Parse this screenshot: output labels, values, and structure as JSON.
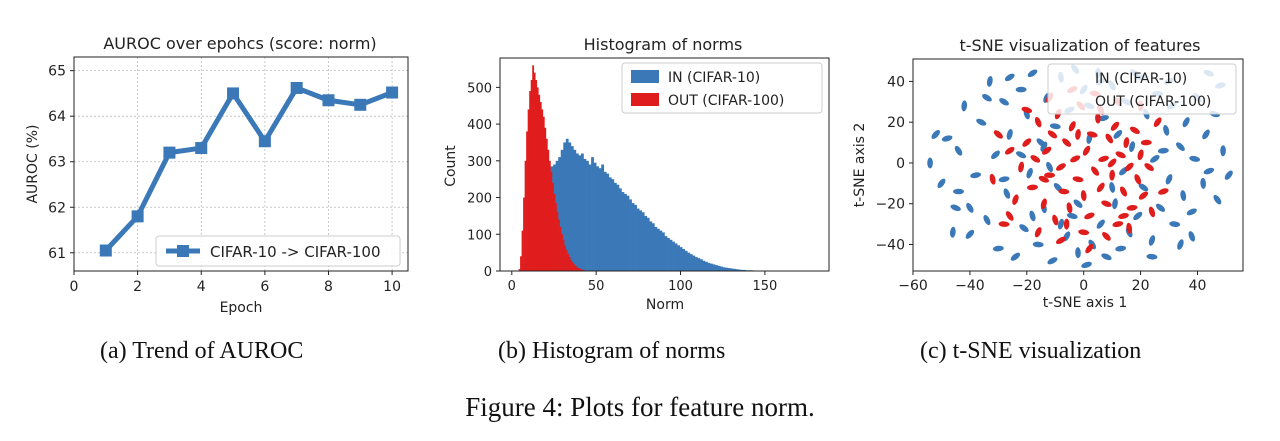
{
  "chart_data": [
    {
      "type": "line",
      "title": "AUROC over epohcs (score: norm)",
      "xlabel": "Epoch",
      "ylabel": "AUROC (%)",
      "xlim": [
        0,
        10.5
      ],
      "ylim": [
        60.6,
        65.3
      ],
      "xticks": [
        0,
        2,
        4,
        6,
        8,
        10
      ],
      "yticks": [
        61,
        62,
        63,
        64,
        65
      ],
      "grid": true,
      "legend_position": "lower-right",
      "series": [
        {
          "name": "CIFAR-10 -> CIFAR-100",
          "color": "#3a78b8",
          "x": [
            1,
            2,
            3,
            4,
            5,
            6,
            7,
            8,
            9,
            10
          ],
          "y": [
            61.05,
            61.8,
            63.2,
            63.3,
            64.5,
            63.45,
            64.62,
            64.35,
            64.25,
            64.52
          ]
        }
      ]
    },
    {
      "type": "histogram",
      "title": "Histogram of norms",
      "xlabel": "Norm",
      "ylabel": "Count",
      "xlim": [
        -7,
        188
      ],
      "ylim": [
        0,
        580
      ],
      "xticks": [
        0,
        50,
        100,
        150
      ],
      "yticks": [
        0,
        100,
        200,
        300,
        400,
        500
      ],
      "grid": false,
      "legend_position": "top-right",
      "series": [
        {
          "name": "IN (CIFAR-10)",
          "color": "#3a78b8",
          "bin_start": 5,
          "bin_width": 1.5,
          "counts": [
            5,
            20,
            55,
            95,
            140,
            180,
            215,
            240,
            260,
            270,
            275,
            280,
            285,
            290,
            300,
            310,
            330,
            350,
            360,
            350,
            340,
            330,
            320,
            315,
            320,
            305,
            300,
            290,
            310,
            295,
            285,
            280,
            290,
            270,
            265,
            255,
            250,
            240,
            235,
            225,
            215,
            210,
            205,
            195,
            185,
            180,
            170,
            165,
            160,
            150,
            145,
            135,
            130,
            120,
            115,
            110,
            105,
            95,
            90,
            85,
            80,
            75,
            70,
            65,
            60,
            55,
            50,
            46,
            42,
            38,
            35,
            32,
            28,
            25,
            22,
            20,
            18,
            16,
            14,
            12,
            10,
            9,
            8,
            7,
            6,
            5,
            4,
            3,
            3,
            2,
            2,
            2,
            1,
            1,
            1,
            1,
            1
          ]
        },
        {
          "name": "OUT (CIFAR-100)",
          "color": "#e01d1d",
          "bin_start": 4,
          "bin_width": 0.9,
          "counts": [
            5,
            40,
            110,
            200,
            300,
            380,
            440,
            490,
            520,
            560,
            540,
            520,
            500,
            480,
            460,
            440,
            420,
            390,
            360,
            330,
            300,
            270,
            240,
            210,
            185,
            160,
            140,
            120,
            100,
            85,
            70,
            58,
            47,
            38,
            30,
            24,
            18,
            14,
            10,
            8,
            6,
            4,
            3,
            2,
            1
          ]
        }
      ]
    },
    {
      "type": "scatter",
      "title": "t-SNE visualization of features",
      "xlabel": "t-SNE axis 1",
      "ylabel": "t-SNE axis 2",
      "xlim": [
        -60,
        56
      ],
      "ylim": [
        -53,
        51
      ],
      "xticks": [
        -60,
        -40,
        -20,
        0,
        20,
        40
      ],
      "yticks": [
        -40,
        -20,
        0,
        20,
        40
      ],
      "grid": false,
      "legend_position": "top-right",
      "series": [
        {
          "name": "IN (CIFAR-10)",
          "color": "#3a78b8",
          "points": [
            [
              -54,
              0
            ],
            [
              -50,
              -10
            ],
            [
              -48,
              12
            ],
            [
              -45,
              -22
            ],
            [
              -44,
              6
            ],
            [
              -42,
              28
            ],
            [
              -40,
              -35
            ],
            [
              -38,
              -6
            ],
            [
              -36,
              20
            ],
            [
              -34,
              -28
            ],
            [
              -33,
              40
            ],
            [
              -31,
              4
            ],
            [
              -30,
              -42
            ],
            [
              -28,
              30
            ],
            [
              -27,
              -15
            ],
            [
              -26,
              14
            ],
            [
              -24,
              -46
            ],
            [
              -22,
              36
            ],
            [
              -21,
              -32
            ],
            [
              -20,
              24
            ],
            [
              -19,
              -5
            ],
            [
              -18,
              44
            ],
            [
              -16,
              -40
            ],
            [
              -15,
              10
            ],
            [
              -14,
              -22
            ],
            [
              -13,
              32
            ],
            [
              -11,
              -48
            ],
            [
              -10,
              18
            ],
            [
              -9,
              -12
            ],
            [
              -8,
              42
            ],
            [
              -6,
              -36
            ],
            [
              -5,
              26
            ],
            [
              -4,
              -26
            ],
            [
              -3,
              46
            ],
            [
              -2,
              -44
            ],
            [
              0,
              36
            ],
            [
              1,
              -50
            ],
            [
              2,
              28
            ],
            [
              3,
              -40
            ],
            [
              5,
              44
            ],
            [
              6,
              -30
            ],
            [
              7,
              22
            ],
            [
              8,
              -46
            ],
            [
              10,
              38
            ],
            [
              11,
              -20
            ],
            [
              12,
              14
            ],
            [
              13,
              -42
            ],
            [
              15,
              30
            ],
            [
              16,
              -34
            ],
            [
              17,
              8
            ],
            [
              19,
              -26
            ],
            [
              20,
              42
            ],
            [
              21,
              -12
            ],
            [
              22,
              24
            ],
            [
              24,
              -38
            ],
            [
              25,
              2
            ],
            [
              26,
              34
            ],
            [
              27,
              -22
            ],
            [
              29,
              16
            ],
            [
              30,
              -8
            ],
            [
              31,
              28
            ],
            [
              32,
              -30
            ],
            [
              34,
              8
            ],
            [
              35,
              -16
            ],
            [
              36,
              20
            ],
            [
              38,
              -24
            ],
            [
              39,
              2
            ],
            [
              40,
              32
            ],
            [
              42,
              -10
            ],
            [
              43,
              14
            ],
            [
              44,
              -4
            ],
            [
              46,
              24
            ],
            [
              47,
              -18
            ],
            [
              49,
              6
            ],
            [
              51,
              -6
            ],
            [
              48,
              38
            ],
            [
              44,
              44
            ],
            [
              -40,
              -22
            ],
            [
              -46,
              -34
            ],
            [
              -52,
              14
            ],
            [
              -28,
              -8
            ],
            [
              -22,
              4
            ],
            [
              -12,
              -2
            ],
            [
              2,
              12
            ],
            [
              14,
              -4
            ],
            [
              28,
              6
            ],
            [
              -34,
              32
            ],
            [
              38,
              -36
            ],
            [
              -8,
              -30
            ],
            [
              6,
              40
            ],
            [
              -44,
              -14
            ],
            [
              18,
              44
            ],
            [
              -18,
              -26
            ],
            [
              34,
              -40
            ],
            [
              -26,
              42
            ],
            [
              24,
              -46
            ],
            [
              -2,
              -20
            ],
            [
              10,
              -12
            ],
            [
              -14,
              8
            ],
            [
              30,
              40
            ]
          ]
        },
        {
          "name": "OUT (CIFAR-100)",
          "color": "#e01d1d",
          "points": [
            [
              -22,
              -2
            ],
            [
              -20,
              10
            ],
            [
              -18,
              -12
            ],
            [
              -17,
              2
            ],
            [
              -16,
              20
            ],
            [
              -14,
              -20
            ],
            [
              -13,
              6
            ],
            [
              -12,
              -6
            ],
            [
              -11,
              14
            ],
            [
              -10,
              -28
            ],
            [
              -9,
              24
            ],
            [
              -8,
              -2
            ],
            [
              -7,
              -14
            ],
            [
              -6,
              10
            ],
            [
              -5,
              -22
            ],
            [
              -4,
              18
            ],
            [
              -3,
              2
            ],
            [
              -2,
              -8
            ],
            [
              -1,
              28
            ],
            [
              0,
              -16
            ],
            [
              1,
              6
            ],
            [
              2,
              -26
            ],
            [
              3,
              14
            ],
            [
              4,
              -4
            ],
            [
              5,
              22
            ],
            [
              6,
              -12
            ],
            [
              7,
              2
            ],
            [
              8,
              -20
            ],
            [
              9,
              12
            ],
            [
              10,
              -6
            ],
            [
              11,
              18
            ],
            [
              12,
              -30
            ],
            [
              13,
              4
            ],
            [
              14,
              -14
            ],
            [
              15,
              10
            ],
            [
              16,
              -2
            ],
            [
              17,
              -22
            ],
            [
              18,
              16
            ],
            [
              19,
              -8
            ],
            [
              20,
              4
            ],
            [
              21,
              -16
            ],
            [
              22,
              10
            ],
            [
              23,
              -2
            ],
            [
              24,
              -24
            ],
            [
              -24,
              -18
            ],
            [
              -26,
              6
            ],
            [
              -28,
              -30
            ],
            [
              -30,
              14
            ],
            [
              -32,
              -8
            ],
            [
              -16,
              -34
            ],
            [
              -8,
              -38
            ],
            [
              0,
              -34
            ],
            [
              8,
              -36
            ],
            [
              16,
              -32
            ],
            [
              -12,
              32
            ],
            [
              -4,
              36
            ],
            [
              4,
              34
            ],
            [
              12,
              30
            ],
            [
              20,
              28
            ],
            [
              26,
              20
            ],
            [
              28,
              -14
            ],
            [
              -20,
              26
            ],
            [
              -26,
              -26
            ],
            [
              -6,
              -30
            ],
            [
              2,
              -42
            ],
            [
              14,
              -26
            ],
            [
              -14,
              -8
            ],
            [
              6,
              26
            ],
            [
              -2,
              14
            ],
            [
              10,
              0
            ]
          ]
        }
      ]
    }
  ],
  "legends": {
    "a": [
      "CIFAR-10 -> CIFAR-100"
    ],
    "b": [
      "IN (CIFAR-10)",
      "OUT (CIFAR-100)"
    ],
    "c": [
      "IN (CIFAR-10)",
      "OUT (CIFAR-100)"
    ]
  },
  "captions": {
    "a": "(a) Trend of AUROC",
    "b": "(b) Histogram of norms",
    "c": "(c) t-SNE visualization",
    "figure": "Figure 4: Plots for feature norm."
  }
}
